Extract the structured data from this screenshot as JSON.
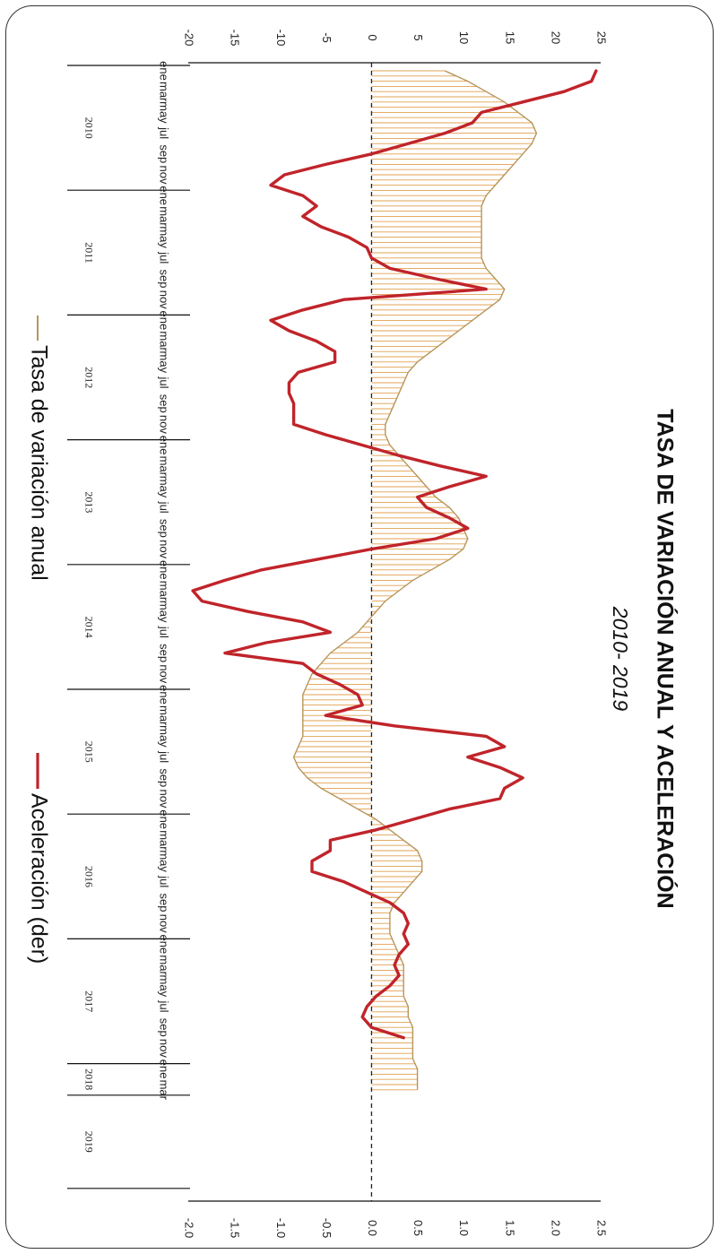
{
  "chart_data": {
    "type": "line",
    "title": "TASA DE VARIACIÓN ANUAL Y ACELERACIÓN",
    "subtitle": "2010- 2019",
    "left_axis": {
      "ticks": [
        "-20",
        "-15",
        "-10",
        "-5",
        "0",
        "5",
        "10",
        "15",
        "20",
        "25"
      ],
      "range": [
        -20,
        25
      ]
    },
    "right_axis": {
      "ticks": [
        "-2.0",
        "-1.5",
        "-1.0",
        "-0.5",
        "0.0",
        "0.5",
        "1.0",
        "1.5",
        "2.0",
        "2.5"
      ],
      "range": [
        -2.0,
        2.5
      ]
    },
    "month_labels": [
      "ene",
      "mar",
      "may",
      "jul",
      "sep",
      "nov"
    ],
    "years": [
      "2010",
      "2011",
      "2012",
      "2013",
      "2014",
      "2015",
      "2016",
      "2017",
      "2018",
      "2019"
    ],
    "x_start": "2010-01",
    "zero_line": "dashed",
    "legend": [
      {
        "name": "Tasa de variación anual",
        "color": "#b8955a"
      },
      {
        "name": "Aceleración (der)",
        "color": "#c0242a"
      }
    ],
    "series": [
      {
        "name": "Tasa de variación anual",
        "axis": "left",
        "color": "#b8955a",
        "fill": "#e0a050",
        "style": "area-hatched",
        "values": [
          8.0,
          10.5,
          12.5,
          14.5,
          16.0,
          17.5,
          18.0,
          17.5,
          16.5,
          15.5,
          14.5,
          13.5,
          12.5,
          12.0,
          12.0,
          12.0,
          12.0,
          12.0,
          12.0,
          12.5,
          13.5,
          14.5,
          14.0,
          12.5,
          11.0,
          9.5,
          8.0,
          6.5,
          5.0,
          4.0,
          3.5,
          3.0,
          2.5,
          2.0,
          1.5,
          1.5,
          2.0,
          3.0,
          4.0,
          5.0,
          6.0,
          7.0,
          8.5,
          9.5,
          10.0,
          10.5,
          10.0,
          8.5,
          6.5,
          4.5,
          3.0,
          1.5,
          0.5,
          -0.5,
          -1.5,
          -3.0,
          -4.5,
          -5.5,
          -6.5,
          -7.0,
          -7.5,
          -7.5,
          -7.5,
          -7.5,
          -7.5,
          -8.0,
          -8.5,
          -8.0,
          -7.0,
          -5.5,
          -3.5,
          -1.5,
          0.5,
          2.0,
          3.5,
          5.0,
          5.5,
          5.5,
          4.5,
          3.5,
          2.5,
          2.0,
          2.0,
          2.0,
          2.5,
          3.0,
          3.5,
          3.5,
          3.5,
          3.5,
          4.0,
          4.0,
          4.5,
          4.5,
          4.5,
          4.5,
          5.0,
          5.0,
          5.0
        ]
      },
      {
        "name": "Aceleración (der)",
        "axis": "right",
        "color": "#c0242a",
        "values": [
          2.45,
          2.4,
          2.1,
          1.65,
          1.2,
          1.1,
          0.8,
          0.4,
          0.0,
          -0.5,
          -0.95,
          -1.1,
          -0.75,
          -0.6,
          -0.75,
          -0.55,
          -0.25,
          -0.05,
          0.0,
          0.2,
          0.7,
          1.25,
          -0.3,
          -0.75,
          -1.1,
          -0.9,
          -0.6,
          -0.4,
          -0.4,
          -0.8,
          -0.9,
          -0.9,
          -0.85,
          -0.85,
          -0.85,
          -0.5,
          -0.1,
          0.3,
          0.75,
          1.25,
          0.85,
          0.5,
          0.6,
          0.85,
          1.05,
          0.7,
          0.0,
          -0.6,
          -1.2,
          -1.6,
          -1.95,
          -1.85,
          -1.35,
          -0.75,
          -0.45,
          -1.15,
          -1.6,
          -0.75,
          -0.6,
          -0.35,
          -0.15,
          -0.1,
          -0.5,
          0.25,
          1.25,
          1.45,
          1.05,
          1.4,
          1.65,
          1.45,
          1.4,
          0.85,
          0.45,
          0.05,
          -0.45,
          -0.45,
          -0.65,
          -0.65,
          -0.3,
          -0.05,
          0.2,
          0.35,
          0.4,
          0.35,
          0.4,
          0.3,
          0.25,
          0.3,
          0.2,
          0.05,
          -0.05,
          -0.1,
          0.0,
          0.35
        ]
      }
    ]
  }
}
